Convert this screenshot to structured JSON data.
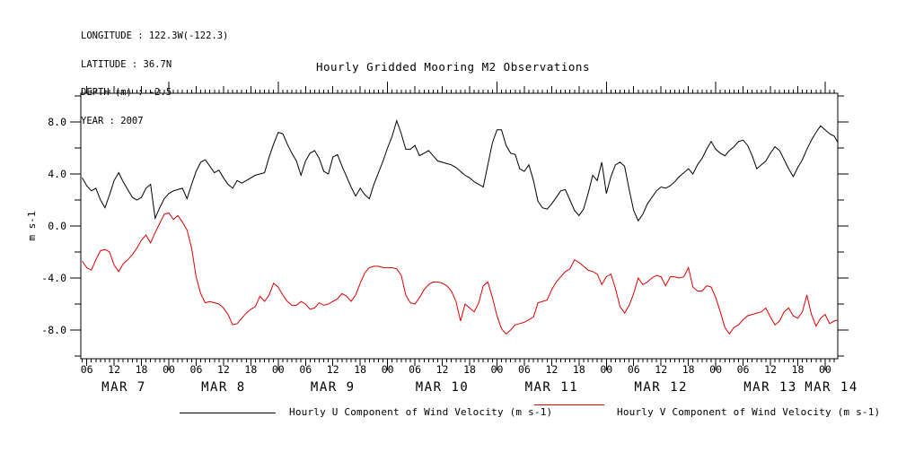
{
  "header_info": {
    "longitude": "LONGITUDE : 122.3W(-122.3)",
    "latitude": "LATITUDE : 36.7N",
    "depth": "DEPTH (m) : -2.5",
    "year": "YEAR : 2007"
  },
  "title": "Hourly Gridded Mooring M2 Observations",
  "y_axis_label": "m s-1",
  "legend": {
    "u_label": "Hourly U Component of Wind Velocity (m s-1)",
    "v_label": "Hourly V Component of Wind Velocity (m s-1)"
  },
  "colors": {
    "u_series": "#000000",
    "v_series": "#dd0000",
    "axis": "#000000",
    "background": "#ffffff"
  },
  "chart_data": {
    "type": "line",
    "title": "Hourly Gridded Mooring M2 Observations",
    "xlabel": "",
    "ylabel": "m s-1",
    "ylim": [
      -10.2,
      10.2
    ],
    "grid": false,
    "legend_position": "bottom",
    "x_start": "2007-03-07 05:00",
    "x_step_hours": 1,
    "x_day_labels": [
      "MAR 7",
      "MAR 8",
      "MAR 9",
      "MAR 10",
      "MAR 11",
      "MAR 12",
      "MAR 13",
      "MAR 14"
    ],
    "hour_tick_label_cycle": [
      "06",
      "12",
      "18",
      "00"
    ],
    "y_ticks_major": [
      8,
      4,
      0,
      -4,
      -8
    ],
    "y_tick_labels": [
      "8.0",
      "4.0",
      "0.0",
      "-4.0",
      "-8.0"
    ],
    "y_minor_step": 2,
    "series": [
      {
        "name": "Hourly U Component of Wind Velocity (m s-1)",
        "color": "#000000",
        "values": [
          3.7,
          3.1,
          2.7,
          2.9,
          2.0,
          1.4,
          2.4,
          3.5,
          4.1,
          3.4,
          2.8,
          2.2,
          2.0,
          2.2,
          2.9,
          3.2,
          0.6,
          1.4,
          2.1,
          2.5,
          2.7,
          2.8,
          2.9,
          2.1,
          3.2,
          4.2,
          4.9,
          5.1,
          4.6,
          4.1,
          4.3,
          3.7,
          3.2,
          2.9,
          3.5,
          3.3,
          3.5,
          3.7,
          3.9,
          4.0,
          4.1,
          5.3,
          6.3,
          7.2,
          7.1,
          6.3,
          5.6,
          5.0,
          3.9,
          5.0,
          5.6,
          5.8,
          5.2,
          4.2,
          4.0,
          5.3,
          5.5,
          4.6,
          3.8,
          3.0,
          2.3,
          2.9,
          2.4,
          2.1,
          3.2,
          4.1,
          5.0,
          6.0,
          6.9,
          8.1,
          7.1,
          5.9,
          5.9,
          6.2,
          5.4,
          5.6,
          5.8,
          5.4,
          5.0,
          4.9,
          4.8,
          4.7,
          4.5,
          4.2,
          3.9,
          3.7,
          3.4,
          3.2,
          3.0,
          4.7,
          6.4,
          7.4,
          7.4,
          6.2,
          5.6,
          5.5,
          4.4,
          4.2,
          4.7,
          3.5,
          1.9,
          1.4,
          1.3,
          1.7,
          2.2,
          2.7,
          2.8,
          2.0,
          1.2,
          0.8,
          1.3,
          2.5,
          3.9,
          3.5,
          4.9,
          2.5,
          3.8,
          4.7,
          4.9,
          4.6,
          2.8,
          1.2,
          0.4,
          0.9,
          1.7,
          2.2,
          2.7,
          3.0,
          2.9,
          3.1,
          3.4,
          3.8,
          4.1,
          4.4,
          4.0,
          4.7,
          5.2,
          5.9,
          6.5,
          5.9,
          5.6,
          5.4,
          5.8,
          6.1,
          6.5,
          6.6,
          6.2,
          5.4,
          4.4,
          4.7,
          5.0,
          5.6,
          6.1,
          5.8,
          5.1,
          4.4,
          3.8,
          4.5,
          5.1,
          5.9,
          6.6,
          7.2,
          7.7,
          7.4,
          7.1,
          6.9,
          6.3
        ]
      },
      {
        "name": "Hourly V Component of Wind Velocity (m s-1)",
        "color": "#dd0000",
        "values": [
          -2.7,
          -3.2,
          -3.4,
          -2.6,
          -1.9,
          -1.8,
          -2.0,
          -3.0,
          -3.5,
          -2.9,
          -2.6,
          -2.2,
          -1.7,
          -1.1,
          -0.7,
          -1.3,
          -0.5,
          0.2,
          0.9,
          1.0,
          0.5,
          0.8,
          0.3,
          -0.3,
          -1.7,
          -3.9,
          -5.2,
          -5.9,
          -5.8,
          -5.9,
          -6.0,
          -6.3,
          -6.8,
          -7.6,
          -7.5,
          -7.1,
          -6.7,
          -6.4,
          -6.2,
          -5.4,
          -5.8,
          -5.3,
          -4.4,
          -4.7,
          -5.3,
          -5.8,
          -6.1,
          -6.1,
          -5.8,
          -6.0,
          -6.4,
          -6.3,
          -5.9,
          -6.1,
          -6.0,
          -5.8,
          -5.6,
          -5.2,
          -5.4,
          -5.8,
          -5.3,
          -4.4,
          -3.6,
          -3.2,
          -3.1,
          -3.1,
          -3.2,
          -3.2,
          -3.2,
          -3.3,
          -3.8,
          -5.3,
          -5.9,
          -6.0,
          -5.5,
          -4.9,
          -4.5,
          -4.3,
          -4.3,
          -4.4,
          -4.6,
          -5.0,
          -5.8,
          -7.3,
          -6.0,
          -6.3,
          -6.6,
          -5.9,
          -4.6,
          -4.3,
          -5.5,
          -6.9,
          -7.9,
          -8.3,
          -8.0,
          -7.6,
          -7.5,
          -7.4,
          -7.2,
          -7.0,
          -5.9,
          -5.8,
          -5.7,
          -4.9,
          -4.3,
          -3.9,
          -3.5,
          -3.3,
          -2.6,
          -2.8,
          -3.1,
          -3.4,
          -3.5,
          -3.7,
          -4.5,
          -3.9,
          -3.7,
          -4.8,
          -6.2,
          -6.7,
          -6.1,
          -5.2,
          -4.0,
          -4.5,
          -4.3,
          -4.0,
          -3.8,
          -3.9,
          -4.6,
          -3.9,
          -3.9,
          -4.0,
          -3.9,
          -3.2,
          -4.7,
          -5.0,
          -5.0,
          -4.6,
          -4.7,
          -5.5,
          -6.6,
          -7.8,
          -8.3,
          -7.8,
          -7.6,
          -7.2,
          -6.9,
          -6.8,
          -6.7,
          -6.6,
          -6.3,
          -7.0,
          -7.6,
          -7.3,
          -6.6,
          -6.3,
          -6.9,
          -7.1,
          -6.6,
          -5.3,
          -6.8,
          -7.7,
          -7.1,
          -6.8,
          -7.5,
          -7.3,
          -7.2
        ]
      }
    ]
  }
}
